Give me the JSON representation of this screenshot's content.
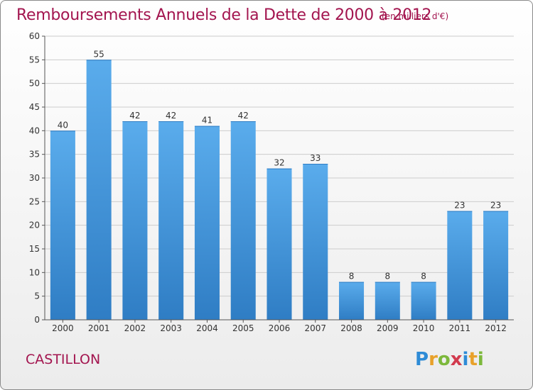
{
  "title": "Remboursements Annuels de la Dette de 2000 à 2012",
  "subtitle": "(en milliers d'€)",
  "commune": "CASTILLON",
  "logo": {
    "text": "Proxiti",
    "letters": [
      {
        "ch": "P",
        "color": "#2e8bd6"
      },
      {
        "ch": "r",
        "color": "#e8a12a"
      },
      {
        "ch": "o",
        "color": "#7cb83b"
      },
      {
        "ch": "x",
        "color": "#d23a4e"
      },
      {
        "ch": "i",
        "color": "#2e8bd6"
      },
      {
        "ch": "t",
        "color": "#e8a12a"
      },
      {
        "ch": "i",
        "color": "#7cb83b"
      }
    ]
  },
  "colors": {
    "bar_top": "#5aacec",
    "bar_bottom": "#2f7dc4",
    "text_accent": "#a3154f",
    "grid": "#cccccc"
  },
  "chart_data": {
    "type": "bar",
    "title": "Remboursements Annuels de la Dette de 2000 à 2012",
    "xlabel": "",
    "ylabel": "",
    "categories": [
      "2000",
      "2001",
      "2002",
      "2003",
      "2004",
      "2005",
      "2006",
      "2007",
      "2008",
      "2009",
      "2010",
      "2011",
      "2012"
    ],
    "values": [
      40,
      55,
      42,
      42,
      41,
      42,
      32,
      33,
      8,
      8,
      8,
      23,
      23
    ],
    "ylim": [
      0,
      60
    ],
    "yticks": [
      0,
      5,
      10,
      15,
      20,
      25,
      30,
      35,
      40,
      45,
      50,
      55,
      60
    ],
    "grid": true,
    "data_labels": true
  }
}
